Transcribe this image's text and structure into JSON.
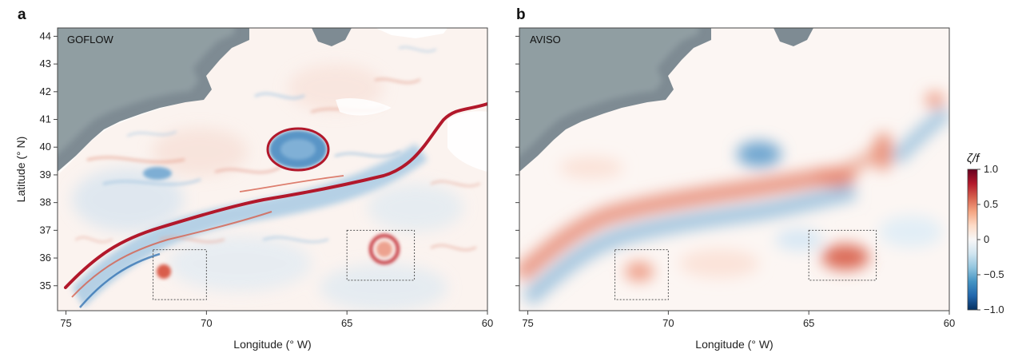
{
  "panels": [
    {
      "letter": "a",
      "name": "GOFLOW",
      "xlabel": "Longitude (° W)",
      "ylabel": "Latitude (° N)",
      "xticks": [
        "75",
        "70",
        "65",
        "60"
      ],
      "yticks": [
        "44",
        "43",
        "42",
        "41",
        "40",
        "39",
        "38",
        "37",
        "36",
        "35"
      ]
    },
    {
      "letter": "b",
      "name": "AVISO",
      "xlabel": "Longitude (° W)",
      "xticks": [
        "75",
        "70",
        "65",
        "60"
      ]
    }
  ],
  "map_extent": {
    "lon_west": 75.3,
    "lon_east": 60,
    "lat_south": 34.1,
    "lat_north": 44.3
  },
  "boxes_deg_w": [
    {
      "lon_west": 71.9,
      "lon_east": 70.0,
      "lat_south": 34.5,
      "lat_north": 36.3
    },
    {
      "lon_west": 65.0,
      "lon_east": 62.6,
      "lat_south": 35.2,
      "lat_north": 37.0
    }
  ],
  "colorbar": {
    "label": "ζ/f",
    "ticks": [
      "1.0",
      "0.5",
      "0",
      "−0.5",
      "−1.0"
    ],
    "tick_values": [
      1.0,
      0.5,
      0,
      -0.5,
      -1.0
    ],
    "colors": [
      "#67001f",
      "#b2182b",
      "#d6604d",
      "#f4a582",
      "#fddbc7",
      "#f7f7f7",
      "#d1e5f0",
      "#92c5de",
      "#4393c3",
      "#2166ac",
      "#053061"
    ]
  },
  "colors": {
    "land": "#7e8b93",
    "land_hilite": "#a3b1b2",
    "red": "#c1272d",
    "blue": "#3b78b3"
  }
}
